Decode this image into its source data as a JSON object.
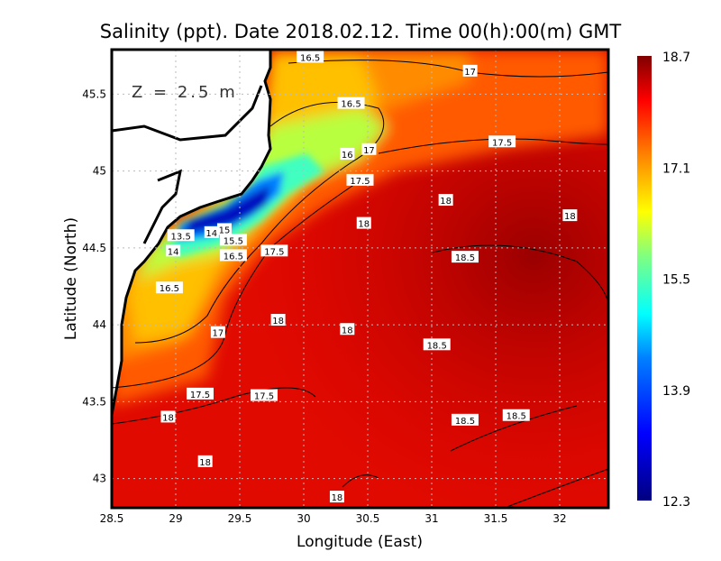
{
  "chart_data": {
    "type": "heatmap",
    "title": "Salinity (ppt). Date 2018.02.12. Time 00(h):00(m) GMT",
    "annotation": "Z = 2.5 m",
    "xlabel": "Longitude (East)",
    "ylabel": "Latitude (North)",
    "xlim": [
      28.5,
      32.38
    ],
    "ylim": [
      42.81,
      45.79
    ],
    "xticks": [
      "28.5",
      "29",
      "29.5",
      "30",
      "30.5",
      "31",
      "31.5",
      "32"
    ],
    "yticks": [
      "43",
      "43.5",
      "44",
      "44.5",
      "45",
      "45.5"
    ],
    "grid": true,
    "colorbar": {
      "min": 12.3,
      "max": 18.7,
      "ticks": [
        "18.7",
        "17.1",
        "15.5",
        "13.9",
        "12.3"
      ],
      "placement": "right"
    },
    "contour_labels": [
      {
        "text": "16.5",
        "lon": 30.05,
        "lat": 45.74
      },
      {
        "text": "17",
        "lon": 31.3,
        "lat": 45.65
      },
      {
        "text": "16.5",
        "lon": 30.37,
        "lat": 45.44
      },
      {
        "text": "17.5",
        "lon": 31.55,
        "lat": 45.19
      },
      {
        "text": "16",
        "lon": 30.34,
        "lat": 45.11
      },
      {
        "text": "17",
        "lon": 30.51,
        "lat": 45.14
      },
      {
        "text": "17.5",
        "lon": 30.44,
        "lat": 44.94
      },
      {
        "text": "18",
        "lon": 31.11,
        "lat": 44.81
      },
      {
        "text": "18",
        "lon": 32.08,
        "lat": 44.71
      },
      {
        "text": "18",
        "lon": 30.47,
        "lat": 44.66
      },
      {
        "text": "13.5",
        "lon": 29.04,
        "lat": 44.58
      },
      {
        "text": "14",
        "lon": 29.28,
        "lat": 44.6
      },
      {
        "text": "15",
        "lon": 29.38,
        "lat": 44.62
      },
      {
        "text": "15.5",
        "lon": 29.45,
        "lat": 44.55
      },
      {
        "text": "14",
        "lon": 28.98,
        "lat": 44.48
      },
      {
        "text": "16.5",
        "lon": 29.45,
        "lat": 44.45
      },
      {
        "text": "17.5",
        "lon": 29.77,
        "lat": 44.48
      },
      {
        "text": "18.5",
        "lon": 31.26,
        "lat": 44.44
      },
      {
        "text": "16.5",
        "lon": 28.95,
        "lat": 44.24
      },
      {
        "text": "18",
        "lon": 29.8,
        "lat": 44.03
      },
      {
        "text": "17",
        "lon": 29.33,
        "lat": 43.95
      },
      {
        "text": "18",
        "lon": 30.34,
        "lat": 43.97
      },
      {
        "text": "18.5",
        "lon": 31.04,
        "lat": 43.87
      },
      {
        "text": "17.5",
        "lon": 29.19,
        "lat": 43.55
      },
      {
        "text": "17.5",
        "lon": 29.69,
        "lat": 43.54
      },
      {
        "text": "18",
        "lon": 28.94,
        "lat": 43.4
      },
      {
        "text": "18.5",
        "lon": 31.26,
        "lat": 43.38
      },
      {
        "text": "18.5",
        "lon": 31.66,
        "lat": 43.41
      },
      {
        "text": "18",
        "lon": 29.23,
        "lat": 43.11
      },
      {
        "text": "18",
        "lon": 30.26,
        "lat": 42.88
      }
    ]
  }
}
